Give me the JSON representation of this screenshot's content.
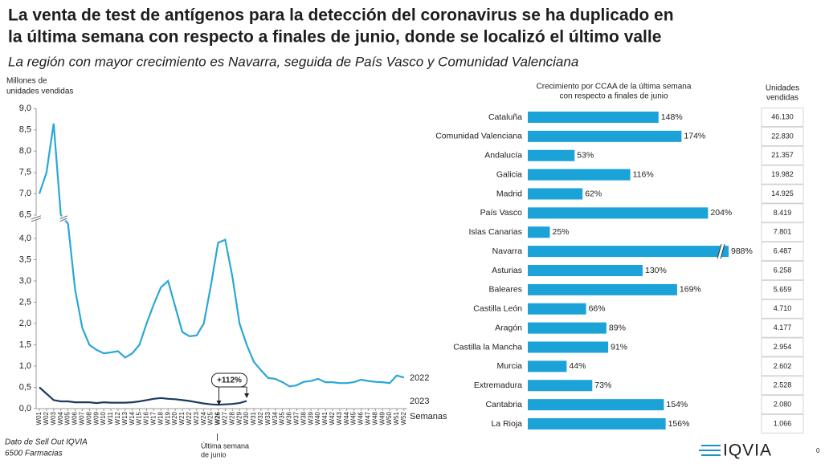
{
  "header": {
    "title": [
      "La venta de test de antígenos para la detección del coronavirus se ha duplicado en",
      "la última semana con respecto a finales de junio, donde se localizó el último valle"
    ],
    "subtitle": "La región con mayor crecimiento es Navarra, seguida de País Vasco y Comunidad Valenciana"
  },
  "chart_data": [
    {
      "type": "line",
      "y_label": [
        "Millones de",
        "unidades vendidas"
      ],
      "x_label": "Semanas",
      "categories": [
        "W01",
        "W02",
        "W03",
        "W04",
        "W05",
        "W06",
        "W07",
        "W08",
        "W09",
        "W10",
        "W11",
        "W12",
        "W13",
        "W14",
        "W15",
        "W16",
        "W17",
        "W18",
        "W19",
        "W20",
        "W21",
        "W22",
        "W23",
        "W24",
        "W25",
        "W26",
        "W27",
        "W28",
        "W29",
        "W30",
        "W31",
        "W32",
        "W33",
        "W34",
        "W35",
        "W36",
        "W37",
        "W38",
        "W39",
        "W40",
        "W41",
        "W42",
        "W43",
        "W44",
        "W45",
        "W46",
        "W47",
        "W48",
        "W49",
        "W50",
        "W51",
        "W52"
      ],
      "series": [
        {
          "name": "2022",
          "color": "#2aa7d6",
          "values": [
            7.0,
            7.5,
            8.65,
            6.5,
            4.35,
            2.8,
            1.9,
            1.5,
            1.38,
            1.3,
            1.32,
            1.35,
            1.2,
            1.3,
            1.5,
            2.0,
            2.45,
            2.85,
            3.0,
            2.4,
            1.8,
            1.7,
            1.72,
            2.0,
            2.9,
            3.9,
            3.97,
            3.1,
            2.0,
            1.5,
            1.1,
            0.9,
            0.72,
            0.7,
            0.62,
            0.52,
            0.55,
            0.63,
            0.65,
            0.7,
            0.62,
            0.62,
            0.6,
            0.6,
            0.62,
            0.68,
            0.65,
            0.63,
            0.62,
            0.6,
            0.78,
            0.73
          ]
        },
        {
          "name": "2023",
          "color": "#1b3a5c",
          "values": [
            0.5,
            0.35,
            0.2,
            0.17,
            0.17,
            0.15,
            0.15,
            0.15,
            0.13,
            0.15,
            0.14,
            0.14,
            0.14,
            0.15,
            0.17,
            0.2,
            0.23,
            0.25,
            0.23,
            0.22,
            0.2,
            0.18,
            0.15,
            0.12,
            0.1,
            0.09,
            0.1,
            0.11,
            0.13,
            0.18,
            null,
            null,
            null,
            null,
            null,
            null,
            null,
            null,
            null,
            null,
            null,
            null,
            null,
            null,
            null,
            null,
            null,
            null,
            null,
            null,
            null,
            null
          ]
        }
      ],
      "ylim": [
        0,
        9
      ],
      "y_break": [
        4.4,
        6.5
      ],
      "yticks": [
        {
          "value": 0,
          "label": "0,0"
        },
        {
          "value": 0.5,
          "label": "0,5"
        },
        {
          "value": 1,
          "label": "1,0"
        },
        {
          "value": 1.5,
          "label": "1,5"
        },
        {
          "value": 2,
          "label": "2,0"
        },
        {
          "value": 2.5,
          "label": "2,5"
        },
        {
          "value": 3,
          "label": "3,0"
        },
        {
          "value": 3.5,
          "label": "3,5"
        },
        {
          "value": 4,
          "label": "4,0"
        },
        {
          "value": 6.5,
          "label": "6,5"
        },
        {
          "value": 7,
          "label": "7,0"
        },
        {
          "value": 7.5,
          "label": "7,5"
        },
        {
          "value": 8,
          "label": "8,0"
        },
        {
          "value": 8.5,
          "label": "8,5"
        },
        {
          "value": 9,
          "label": "9,0"
        }
      ],
      "highlight_category": "W26",
      "annotation": "+112%",
      "annotation_note": [
        "Última semana",
        "de junio"
      ]
    },
    {
      "type": "hbar",
      "title": [
        "Crecimiento por CCAA de la última semana",
        "con respecto a finales de junio"
      ],
      "categories": [
        "Cataluña",
        "Comunidad Valenciana",
        "Andalucía",
        "Galicia",
        "Madrid",
        "País Vasco",
        "Islas Canarias",
        "Navarra",
        "Asturias",
        "Baleares",
        "Castilla León",
        "Aragón",
        "Castilla la Mancha",
        "Murcia",
        "Extremadura",
        "Cantabria",
        "La Rioja"
      ],
      "values": [
        148,
        174,
        53,
        116,
        62,
        204,
        25,
        988,
        130,
        169,
        66,
        89,
        91,
        44,
        73,
        154,
        156
      ],
      "value_labels": [
        "148%",
        "174%",
        "53%",
        "116%",
        "62%",
        "204%",
        "25%",
        "988%",
        "130%",
        "169%",
        "66%",
        "89%",
        "91%",
        "44%",
        "73%",
        "154%",
        "156%"
      ],
      "color": "#1ba3d8"
    }
  ],
  "table": {
    "header": [
      "Unidades",
      "vendidas"
    ],
    "rows": [
      "46.130",
      "22.830",
      "21.357",
      "19.982",
      "14.925",
      "8.419",
      "7.801",
      "6.487",
      "6.258",
      "5.659",
      "4.710",
      "4.177",
      "2.954",
      "2.602",
      "2.528",
      "2.080",
      "1.066"
    ]
  },
  "footer": {
    "source": [
      "Dato de Sell Out  IQVIA",
      "6500 Farmacias"
    ],
    "logo": "IQVIA",
    "page": "0"
  }
}
